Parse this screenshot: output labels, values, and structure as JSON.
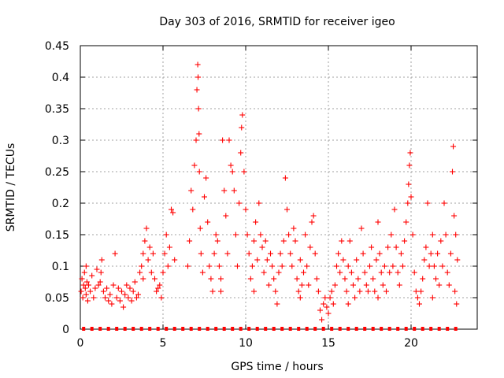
{
  "chart_data": {
    "type": "scatter",
    "title": "Day 303 of 2016, SRMTID for receiver igeo",
    "xlabel": "GPS time / hours",
    "ylabel": "SRMTID / TECUs",
    "xlim": [
      0,
      24
    ],
    "ylim": [
      0,
      0.45
    ],
    "xticks": [
      0,
      5,
      10,
      15,
      20
    ],
    "yticks": [
      0,
      0.05,
      0.1,
      0.15,
      0.2,
      0.25,
      0.3,
      0.35,
      0.4,
      0.45
    ],
    "grid": true,
    "marker": "+",
    "color": "#ff0000",
    "series": [
      {
        "name": "SRMTID",
        "points": [
          [
            0.05,
            0.06
          ],
          [
            0.1,
            0.08
          ],
          [
            0.15,
            0.05
          ],
          [
            0.2,
            0.07
          ],
          [
            0.25,
            0.09
          ],
          [
            0.3,
            0.065
          ],
          [
            0.35,
            0.055
          ],
          [
            0.4,
            0.075
          ],
          [
            0.45,
            0.045
          ],
          [
            0.5,
            0.07
          ],
          [
            0.6,
            0.06
          ],
          [
            0.7,
            0.085
          ],
          [
            0.8,
            0.05
          ],
          [
            0.9,
            0.065
          ],
          [
            1.0,
            0.095
          ],
          [
            1.1,
            0.07
          ],
          [
            1.2,
            0.075
          ],
          [
            1.3,
            0.11
          ],
          [
            1.4,
            0.06
          ],
          [
            1.5,
            0.05
          ],
          [
            1.6,
            0.065
          ],
          [
            1.7,
            0.045
          ],
          [
            1.8,
            0.055
          ],
          [
            1.9,
            0.04
          ],
          [
            2.0,
            0.07
          ],
          [
            2.1,
            0.12
          ],
          [
            2.2,
            0.05
          ],
          [
            2.3,
            0.065
          ],
          [
            2.4,
            0.045
          ],
          [
            2.5,
            0.06
          ],
          [
            2.6,
            0.035
          ],
          [
            2.7,
            0.055
          ],
          [
            2.8,
            0.07
          ],
          [
            2.9,
            0.05
          ],
          [
            3.0,
            0.065
          ],
          [
            3.1,
            0.045
          ],
          [
            3.2,
            0.06
          ],
          [
            3.3,
            0.075
          ],
          [
            3.4,
            0.05
          ],
          [
            3.5,
            0.055
          ],
          [
            3.6,
            0.09
          ],
          [
            3.7,
            0.1
          ],
          [
            3.8,
            0.12
          ],
          [
            3.9,
            0.14
          ],
          [
            4.0,
            0.16
          ],
          [
            4.1,
            0.11
          ],
          [
            4.2,
            0.13
          ],
          [
            4.3,
            0.09
          ],
          [
            4.4,
            0.12
          ],
          [
            4.5,
            0.08
          ],
          [
            4.6,
            0.06
          ],
          [
            4.7,
            0.065
          ],
          [
            4.8,
            0.07
          ],
          [
            4.9,
            0.05
          ],
          [
            5.0,
            0.09
          ],
          [
            5.1,
            0.12
          ],
          [
            5.2,
            0.15
          ],
          [
            5.3,
            0.1
          ],
          [
            5.4,
            0.13
          ],
          [
            5.5,
            0.19
          ],
          [
            5.6,
            0.185
          ],
          [
            5.7,
            0.11
          ],
          [
            6.5,
            0.1
          ],
          [
            6.6,
            0.14
          ],
          [
            6.7,
            0.22
          ],
          [
            6.8,
            0.19
          ],
          [
            6.9,
            0.26
          ],
          [
            7.0,
            0.3
          ],
          [
            7.05,
            0.38
          ],
          [
            7.1,
            0.42
          ],
          [
            7.12,
            0.4
          ],
          [
            7.15,
            0.35
          ],
          [
            7.18,
            0.31
          ],
          [
            7.2,
            0.25
          ],
          [
            7.25,
            0.16
          ],
          [
            7.3,
            0.12
          ],
          [
            7.4,
            0.09
          ],
          [
            7.5,
            0.21
          ],
          [
            7.6,
            0.24
          ],
          [
            7.7,
            0.17
          ],
          [
            7.8,
            0.1
          ],
          [
            7.9,
            0.08
          ],
          [
            8.0,
            0.06
          ],
          [
            8.1,
            0.12
          ],
          [
            8.2,
            0.15
          ],
          [
            8.3,
            0.14
          ],
          [
            8.4,
            0.1
          ],
          [
            8.5,
            0.06
          ],
          [
            8.6,
            0.3
          ],
          [
            8.7,
            0.22
          ],
          [
            8.8,
            0.18
          ],
          [
            8.9,
            0.12
          ],
          [
            9.0,
            0.3
          ],
          [
            9.1,
            0.26
          ],
          [
            9.2,
            0.25
          ],
          [
            9.3,
            0.22
          ],
          [
            9.4,
            0.15
          ],
          [
            9.5,
            0.1
          ],
          [
            9.6,
            0.2
          ],
          [
            9.7,
            0.28
          ],
          [
            9.75,
            0.32
          ],
          [
            9.8,
            0.34
          ],
          [
            9.9,
            0.25
          ],
          [
            10.0,
            0.19
          ],
          [
            10.1,
            0.15
          ],
          [
            10.2,
            0.12
          ],
          [
            10.3,
            0.08
          ],
          [
            10.4,
            0.1
          ],
          [
            10.5,
            0.14
          ],
          [
            10.6,
            0.17
          ],
          [
            10.7,
            0.11
          ],
          [
            10.8,
            0.2
          ],
          [
            10.9,
            0.15
          ],
          [
            11.0,
            0.13
          ],
          [
            11.1,
            0.09
          ],
          [
            11.2,
            0.14
          ],
          [
            11.3,
            0.11
          ],
          [
            11.4,
            0.07
          ],
          [
            11.5,
            0.12
          ],
          [
            11.6,
            0.1
          ],
          [
            11.7,
            0.08
          ],
          [
            11.8,
            0.06
          ],
          [
            11.9,
            0.04
          ],
          [
            12.0,
            0.09
          ],
          [
            12.1,
            0.12
          ],
          [
            12.2,
            0.1
          ],
          [
            12.3,
            0.14
          ],
          [
            12.4,
            0.24
          ],
          [
            12.5,
            0.19
          ],
          [
            12.6,
            0.15
          ],
          [
            12.7,
            0.12
          ],
          [
            12.8,
            0.1
          ],
          [
            12.9,
            0.16
          ],
          [
            13.0,
            0.14
          ],
          [
            13.1,
            0.08
          ],
          [
            13.2,
            0.06
          ],
          [
            13.3,
            0.05
          ],
          [
            13.4,
            0.07
          ],
          [
            13.5,
            0.09
          ],
          [
            13.6,
            0.15
          ],
          [
            13.7,
            0.1
          ],
          [
            13.8,
            0.07
          ],
          [
            13.9,
            0.13
          ],
          [
            14.0,
            0.17
          ],
          [
            14.1,
            0.18
          ],
          [
            14.2,
            0.12
          ],
          [
            14.3,
            0.08
          ],
          [
            14.4,
            0.06
          ],
          [
            14.5,
            0.03
          ],
          [
            14.6,
            0.015
          ],
          [
            14.7,
            0.04
          ],
          [
            14.8,
            0.05
          ],
          [
            14.9,
            0.035
          ],
          [
            15.0,
            0.025
          ],
          [
            15.1,
            0.05
          ],
          [
            15.2,
            0.06
          ],
          [
            15.3,
            0.04
          ],
          [
            15.4,
            0.07
          ],
          [
            15.5,
            0.1
          ],
          [
            15.6,
            0.12
          ],
          [
            15.7,
            0.09
          ],
          [
            15.8,
            0.14
          ],
          [
            15.9,
            0.11
          ],
          [
            16.0,
            0.08
          ],
          [
            16.1,
            0.06
          ],
          [
            16.2,
            0.1
          ],
          [
            16.3,
            0.14
          ],
          [
            16.4,
            0.09
          ],
          [
            16.5,
            0.07
          ],
          [
            16.6,
            0.05
          ],
          [
            16.7,
            0.11
          ],
          [
            16.8,
            0.08
          ],
          [
            16.9,
            0.06
          ],
          [
            17.0,
            0.16
          ],
          [
            17.1,
            0.12
          ],
          [
            17.2,
            0.09
          ],
          [
            17.3,
            0.07
          ],
          [
            17.4,
            0.06
          ],
          [
            17.5,
            0.1
          ],
          [
            17.6,
            0.13
          ],
          [
            17.7,
            0.08
          ],
          [
            17.8,
            0.06
          ],
          [
            17.9,
            0.11
          ],
          [
            18.0,
            0.17
          ],
          [
            18.1,
            0.12
          ],
          [
            18.2,
            0.09
          ],
          [
            18.3,
            0.07
          ],
          [
            18.4,
            0.1
          ],
          [
            18.5,
            0.06
          ],
          [
            18.6,
            0.13
          ],
          [
            18.7,
            0.09
          ],
          [
            18.8,
            0.15
          ],
          [
            18.9,
            0.1
          ],
          [
            19.0,
            0.19
          ],
          [
            19.1,
            0.13
          ],
          [
            19.2,
            0.09
          ],
          [
            19.3,
            0.07
          ],
          [
            19.4,
            0.12
          ],
          [
            19.5,
            0.1
          ],
          [
            19.6,
            0.14
          ],
          [
            19.7,
            0.17
          ],
          [
            19.8,
            0.2
          ],
          [
            19.85,
            0.23
          ],
          [
            19.9,
            0.26
          ],
          [
            19.95,
            0.28
          ],
          [
            20.0,
            0.21
          ],
          [
            20.1,
            0.15
          ],
          [
            20.2,
            0.09
          ],
          [
            20.3,
            0.06
          ],
          [
            20.4,
            0.05
          ],
          [
            20.5,
            0.04
          ],
          [
            20.6,
            0.06
          ],
          [
            20.7,
            0.08
          ],
          [
            20.8,
            0.11
          ],
          [
            20.9,
            0.13
          ],
          [
            21.0,
            0.2
          ],
          [
            21.1,
            0.1
          ],
          [
            21.2,
            0.12
          ],
          [
            21.3,
            0.15
          ],
          [
            21.4,
            0.1
          ],
          [
            21.5,
            0.08
          ],
          [
            21.6,
            0.12
          ],
          [
            21.7,
            0.07
          ],
          [
            21.8,
            0.14
          ],
          [
            21.9,
            0.1
          ],
          [
            22.0,
            0.2
          ],
          [
            22.1,
            0.15
          ],
          [
            22.2,
            0.09
          ],
          [
            22.3,
            0.07
          ],
          [
            22.4,
            0.12
          ],
          [
            22.5,
            0.25
          ],
          [
            22.55,
            0.29
          ],
          [
            22.6,
            0.18
          ],
          [
            22.7,
            0.15
          ],
          [
            22.8,
            0.11
          ],
          [
            22.65,
            0.06
          ],
          [
            22.75,
            0.04
          ],
          [
            0.35,
            0.1
          ],
          [
            1.25,
            0.09
          ],
          [
            3.8,
            0.08
          ],
          [
            8.5,
            0.08
          ],
          [
            10.5,
            0.06
          ],
          [
            13.3,
            0.11
          ],
          [
            16.2,
            0.04
          ],
          [
            18.0,
            0.05
          ],
          [
            21.3,
            0.05
          ]
        ]
      }
    ],
    "zero_markers_x": [
      0.2,
      0.7,
      1.2,
      1.7,
      2.2,
      2.7,
      3.2,
      3.7,
      4.2,
      4.7,
      5.2,
      5.7,
      6.2,
      6.7,
      7.2,
      7.7,
      8.2,
      8.7,
      9.2,
      9.7,
      10.2,
      10.7,
      11.2,
      11.7,
      12.2,
      12.7,
      13.2,
      13.7,
      14.2,
      14.7,
      15.2,
      15.7,
      16.2,
      16.7,
      17.2,
      17.7,
      18.2,
      18.7,
      19.2,
      19.7,
      20.2,
      20.7,
      21.2,
      21.7,
      22.2,
      22.7
    ]
  }
}
